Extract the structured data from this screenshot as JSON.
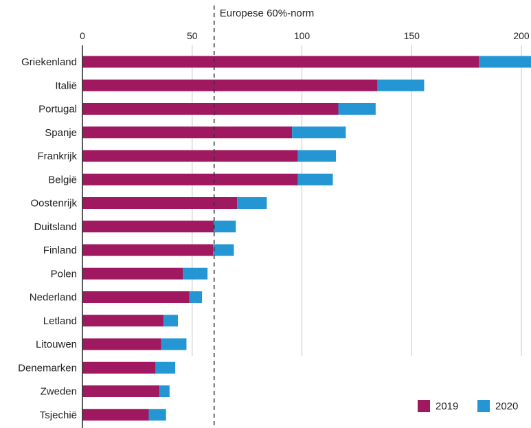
{
  "chart_data": {
    "type": "bar",
    "orientation": "horizontal",
    "stacked": true,
    "categories": [
      "Griekenland",
      "Italië",
      "Portugal",
      "Spanje",
      "Frankrijk",
      "België",
      "Oostenrijk",
      "Duitsland",
      "Finland",
      "Polen",
      "Nederland",
      "Letland",
      "Litouwen",
      "Denemarken",
      "Zweden",
      "Tsjechië"
    ],
    "series": [
      {
        "name": "2019",
        "color": "#a0185f",
        "values": [
          180.7,
          134.4,
          116.6,
          95.5,
          98.1,
          98.1,
          70.5,
          59.8,
          59.5,
          45.7,
          48.7,
          36.9,
          35.9,
          33.3,
          35.1,
          30.2
        ]
      },
      {
        "name": "2020",
        "color": "#2596d4",
        "values": [
          24.5,
          21.3,
          17.0,
          24.5,
          17.4,
          16.0,
          13.5,
          10.1,
          9.5,
          11.3,
          5.8,
          6.6,
          11.5,
          9.0,
          4.6,
          7.9
        ]
      }
    ],
    "xlim": [
      0,
      205
    ],
    "x_ticks": [
      "0",
      "50",
      "100",
      "150",
      "200"
    ],
    "grid": "vertical",
    "reference_line": {
      "value": 60,
      "label": "Europese 60%-norm",
      "style": "dashed"
    },
    "legend_position": "bottom-right"
  }
}
